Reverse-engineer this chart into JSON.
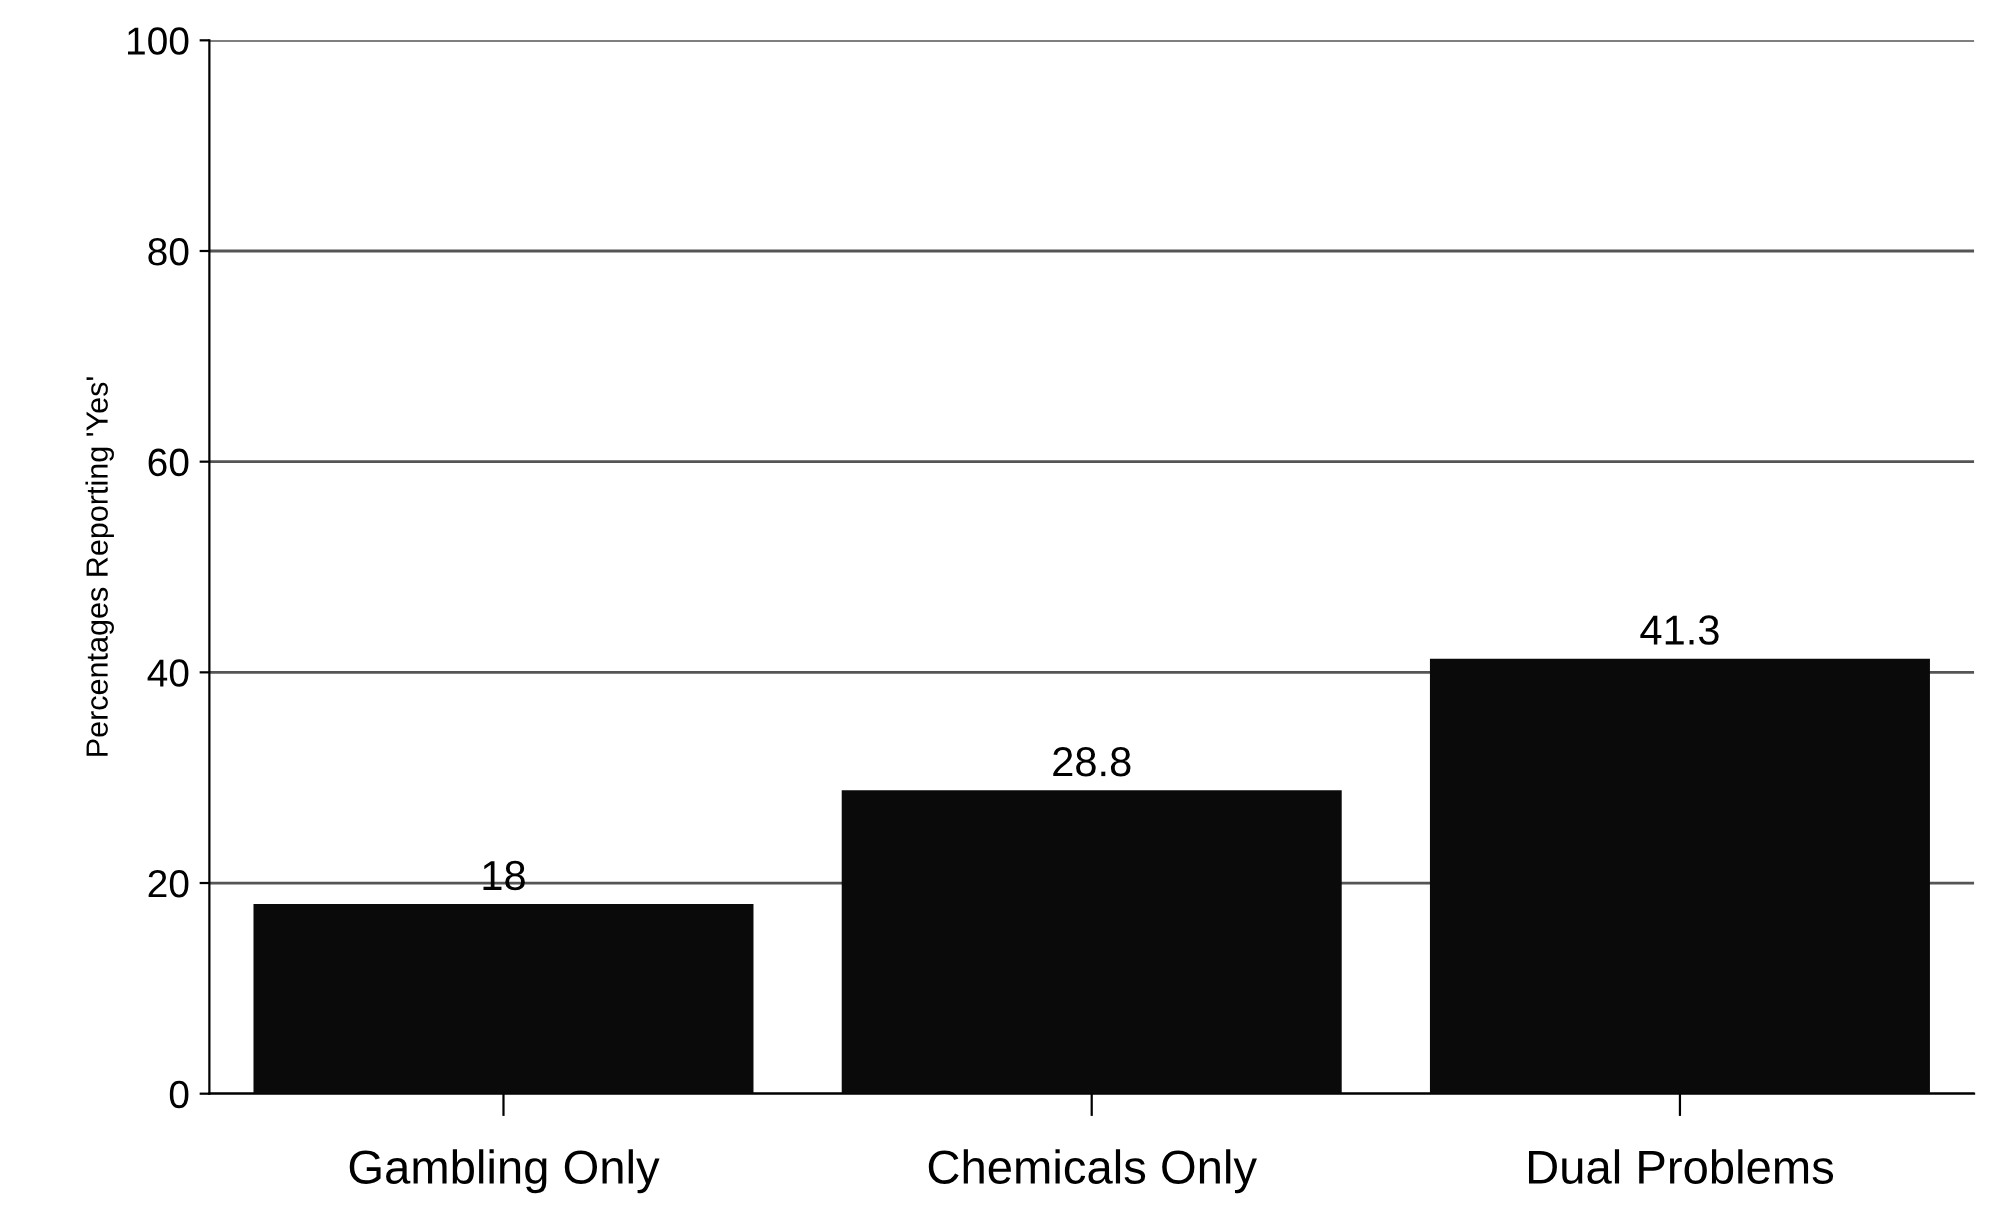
{
  "chart_data": {
    "type": "bar",
    "ylabel": "Percentages Reporting 'Yes'",
    "categories": [
      "Gambling Only",
      "Chemicals Only",
      "Dual Problems"
    ],
    "values": [
      18,
      28.8,
      41.3
    ],
    "color": "#0a0a0a",
    "ylim": [
      0,
      100
    ],
    "yticks": [
      0,
      20,
      40,
      60,
      80,
      100
    ],
    "grid": "y",
    "data_labels": true
  }
}
